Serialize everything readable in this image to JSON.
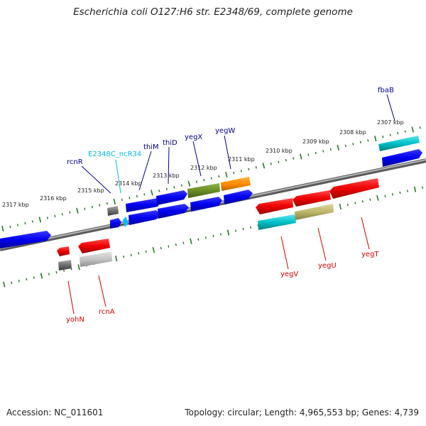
{
  "title": "Escherichia coli O127:H6 str. E2348/69, complete genome",
  "accession_text": "Accession: NC_011601",
  "summary_text": "Topology: circular; Length: 4,965,553 bp; Genes: 4,739",
  "scale_labels": [
    "2317 kbp",
    "2316 kbp",
    "2315 kbp",
    "2314 kbp",
    "2313 kbp",
    "2312 kbp",
    "2311 kbp",
    "2310 kbp",
    "2309 kbp",
    "2308 kbp",
    "2307 kbp"
  ],
  "gene_labels_top": [
    {
      "text": "rcnR",
      "color": "#00008b"
    },
    {
      "text": "E2348C_ncR34",
      "color": "#00bcd4"
    },
    {
      "text": "thiM",
      "color": "#00008b"
    },
    {
      "text": "thiD",
      "color": "#00008b"
    },
    {
      "text": "yegX",
      "color": "#00008b"
    },
    {
      "text": "yegW",
      "color": "#00008b"
    },
    {
      "text": "fbaB",
      "color": "#00008b"
    }
  ],
  "gene_labels_bottom": [
    {
      "text": "yohN",
      "color": "#d40000"
    },
    {
      "text": "rcnA",
      "color": "#d40000"
    },
    {
      "text": "yegV",
      "color": "#d40000"
    },
    {
      "text": "yegU",
      "color": "#d40000"
    },
    {
      "text": "yegT",
      "color": "#d40000"
    }
  ],
  "colors": {
    "forward_cds": "#0000ee",
    "reverse_cds": "#ee0000",
    "backbone": "#7a7a7a",
    "ruler_ticks": "#1f7a1f",
    "gene_olive": "#6b8e23",
    "gene_orange": "#ff8c00",
    "gene_cyan": "#00c0c8",
    "gene_khaki": "#bdb76b",
    "gene_gray": "#808080",
    "gene_lightgray": "#c8c8c8"
  }
}
